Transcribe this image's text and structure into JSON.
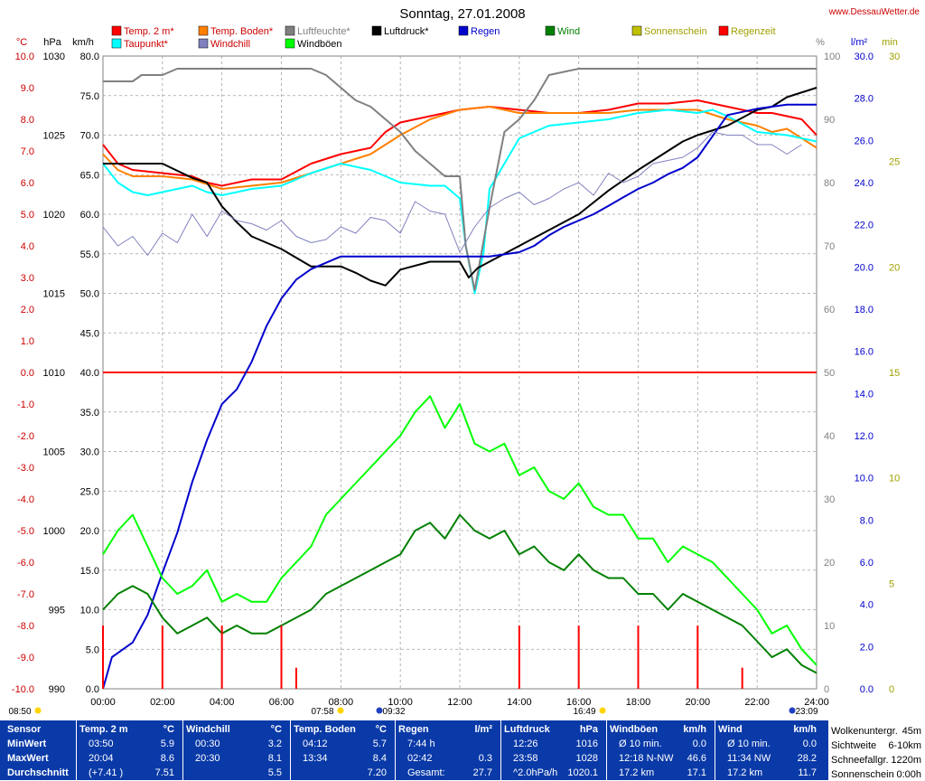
{
  "title": "Sonntag, 27.01.2008",
  "website": "www.DessauWetter.de",
  "legend": [
    {
      "label": "Temp. 2 m*",
      "color": "#ff0000",
      "text_color": "#cc0000"
    },
    {
      "label": "Temp. Boden*",
      "color": "#ff8000",
      "text_color": "#cc0000"
    },
    {
      "label": "Luftfeuchte*",
      "color": "#808080",
      "text_color": "#808080"
    },
    {
      "label": "Luftdruck*",
      "color": "#000000",
      "text_color": "#000000"
    },
    {
      "label": "Regen",
      "color": "#0000cc",
      "text_color": "#0000cc"
    },
    {
      "label": "Wind",
      "color": "#008000",
      "text_color": "#008000"
    },
    {
      "label": "Sonnenschein",
      "color": "#c0c000",
      "text_color": "#a0a000"
    },
    {
      "label": "Regenzeit",
      "color": "#ff0000",
      "text_color": "#a0a000"
    },
    {
      "label": "Taupunkt*",
      "color": "#00ffff",
      "text_color": "#cc0000"
    },
    {
      "label": "Windchill",
      "color": "#8080c0",
      "text_color": "#cc0000"
    },
    {
      "label": "Windböen",
      "color": "#00ff00",
      "text_color": "#000000"
    }
  ],
  "axes": {
    "temp": {
      "unit": "°C",
      "ticks": [
        "10.0",
        "9.0",
        "8.0",
        "7.0",
        "6.0",
        "5.0",
        "4.0",
        "3.0",
        "2.0",
        "1.0",
        "0.0",
        "-1.0",
        "-2.0",
        "-3.0",
        "-4.0",
        "-5.0",
        "-6.0",
        "-7.0",
        "-8.0",
        "-9.0",
        "-10.0"
      ]
    },
    "pressure": {
      "unit": "hPa",
      "ticks": [
        "1030",
        "1025",
        "1020",
        "1015",
        "1010",
        "1005",
        "1000",
        "995",
        "990"
      ]
    },
    "wind": {
      "unit": "km/h",
      "ticks": [
        "80.0",
        "75.0",
        "70.0",
        "65.0",
        "60.0",
        "55.0",
        "50.0",
        "45.0",
        "40.0",
        "35.0",
        "30.0",
        "25.0",
        "20.0",
        "15.0",
        "10.0",
        "5.0",
        "0.0"
      ]
    },
    "humidity": {
      "unit": "%",
      "ticks": [
        "100",
        "90",
        "80",
        "70",
        "60",
        "50",
        "40",
        "30",
        "20",
        "10",
        "0"
      ]
    },
    "rain": {
      "unit": "l/m²",
      "ticks": [
        "30.0",
        "28.0",
        "26.0",
        "24.0",
        "22.0",
        "20.0",
        "18.0",
        "16.0",
        "14.0",
        "12.0",
        "10.0",
        "8.0",
        "6.0",
        "4.0",
        "2.0",
        "0.0"
      ]
    },
    "minutes": {
      "unit": "min",
      "ticks": [
        "30",
        "25",
        "20",
        "15",
        "10",
        "5",
        "0"
      ]
    },
    "time": {
      "ticks": [
        "00:00",
        "02:00",
        "04:00",
        "06:00",
        "08:00",
        "10:00",
        "12:00",
        "14:00",
        "16:00",
        "18:00",
        "20:00",
        "22:00",
        "24:00"
      ]
    }
  },
  "time_markers": [
    {
      "label": "08:50",
      "kind": "sun"
    },
    {
      "label": "07:58",
      "kind": "sun"
    },
    {
      "label": "09:32",
      "kind": "moon"
    },
    {
      "label": "16:49",
      "kind": "sun"
    },
    {
      "label": "23:09",
      "kind": "moon"
    }
  ],
  "chart_data": {
    "type": "line",
    "x_range": [
      "00:00",
      "24:00"
    ],
    "ylim_temp": [
      -10,
      10
    ],
    "ylim_pressure": [
      990,
      1030
    ],
    "ylim_wind": [
      0,
      80
    ],
    "ylim_humidity": [
      0,
      100
    ],
    "ylim_rain": [
      0,
      30
    ],
    "series": [
      {
        "name": "Temp. 2 m*",
        "axis": "temp",
        "color": "#ff0000",
        "x": [
          0,
          0.5,
          1,
          2,
          3,
          3.5,
          4,
          5,
          6,
          7,
          8,
          8.5,
          9,
          9.5,
          10,
          11,
          12,
          13,
          14,
          15,
          16,
          17,
          18,
          19,
          20,
          21,
          21.5,
          22,
          22.5,
          23,
          23.5,
          24
        ],
        "y": [
          7.2,
          6.6,
          6.4,
          6.3,
          6.2,
          6.0,
          5.9,
          6.1,
          6.1,
          6.6,
          6.9,
          7.0,
          7.1,
          7.6,
          7.9,
          8.1,
          8.3,
          8.4,
          8.3,
          8.2,
          8.2,
          8.3,
          8.5,
          8.5,
          8.6,
          8.4,
          8.3,
          8.2,
          8.2,
          8.1,
          8.0,
          7.5
        ]
      },
      {
        "name": "Temp. Boden*",
        "axis": "temp",
        "color": "#ff8000",
        "x": [
          0,
          0.5,
          1,
          2,
          3,
          4,
          5,
          6,
          7,
          8,
          9,
          10,
          11,
          12,
          13,
          14,
          15,
          16,
          17,
          18,
          19,
          20,
          21,
          22,
          22.5,
          23,
          24
        ],
        "y": [
          6.9,
          6.4,
          6.2,
          6.2,
          6.1,
          5.8,
          5.9,
          6.0,
          6.3,
          6.6,
          6.9,
          7.5,
          8.0,
          8.3,
          8.4,
          8.2,
          8.2,
          8.2,
          8.2,
          8.3,
          8.3,
          8.3,
          8.0,
          7.8,
          7.6,
          7.7,
          7.1
        ]
      },
      {
        "name": "Taupunkt*",
        "axis": "temp",
        "color": "#00ffff",
        "x": [
          0,
          0.5,
          1,
          1.5,
          2,
          3,
          3.5,
          4,
          5,
          6,
          7,
          8,
          9,
          10,
          11,
          11.5,
          12,
          12.2,
          12.5,
          12.8,
          13,
          13.5,
          14,
          15,
          16,
          17,
          18,
          19,
          20,
          20.5,
          21,
          22,
          23,
          24
        ],
        "y": [
          6.6,
          6.0,
          5.7,
          5.6,
          5.7,
          5.9,
          5.7,
          5.6,
          5.8,
          5.9,
          6.3,
          6.6,
          6.4,
          6.0,
          5.9,
          5.9,
          5.5,
          4.0,
          2.5,
          3.8,
          5.8,
          6.6,
          7.4,
          7.8,
          7.9,
          8.0,
          8.2,
          8.3,
          8.2,
          8.3,
          8.1,
          7.6,
          7.5,
          7.3
        ]
      },
      {
        "name": "Luftfeuchte*",
        "axis": "humidity",
        "color": "#808080",
        "x": [
          0,
          1,
          1.3,
          2,
          2.5,
          3,
          4,
          5,
          6,
          7,
          7.5,
          8,
          8.5,
          9,
          10,
          10.5,
          11,
          11.5,
          12,
          12.2,
          12.5,
          13,
          13.5,
          14,
          14.5,
          15,
          16,
          17,
          18,
          19,
          20,
          21,
          22,
          23,
          24
        ],
        "y": [
          96,
          96,
          97,
          97,
          98,
          98,
          98,
          98,
          98,
          98,
          97,
          95,
          93,
          92,
          88,
          85,
          83,
          81,
          81,
          70,
          63,
          76,
          88,
          90,
          93,
          97,
          98,
          98,
          98,
          98,
          98,
          98,
          98,
          98,
          98
        ]
      },
      {
        "name": "Luftdruck*",
        "axis": "pressure",
        "color": "#000000",
        "x": [
          0,
          1,
          2,
          3,
          3.5,
          4,
          4.5,
          5,
          6,
          7,
          8,
          8.5,
          9,
          9.5,
          10,
          11,
          12,
          12.3,
          12.6,
          13,
          14,
          15,
          16,
          17,
          18,
          19,
          19.5,
          20,
          21,
          22,
          22.5,
          23,
          24
        ],
        "y": [
          1023.2,
          1023.2,
          1023.2,
          1022.3,
          1022.0,
          1020.5,
          1019.5,
          1018.6,
          1017.8,
          1016.7,
          1016.7,
          1016.3,
          1015.8,
          1015.5,
          1016.5,
          1017.0,
          1017.0,
          1016.0,
          1016.6,
          1017.0,
          1018.0,
          1019.0,
          1020.0,
          1021.5,
          1022.8,
          1024.0,
          1024.6,
          1025.0,
          1025.6,
          1026.6,
          1026.8,
          1027.4,
          1028.0
        ]
      },
      {
        "name": "Regen",
        "axis": "rain",
        "color": "#0000cc",
        "x": [
          0,
          0.3,
          1,
          1.5,
          2,
          2.5,
          3,
          3.5,
          4,
          4.5,
          5,
          5.5,
          6,
          6.5,
          7,
          7.5,
          8,
          8.5,
          9,
          10,
          12,
          13,
          14,
          14.5,
          15,
          15.5,
          16,
          16.5,
          17,
          17.5,
          18,
          18.5,
          19,
          19.5,
          20,
          20.5,
          21,
          22,
          23,
          24
        ],
        "y": [
          0,
          1.5,
          2.2,
          3.5,
          5.5,
          7.4,
          9.8,
          11.8,
          13.5,
          14.2,
          15.5,
          17.2,
          18.5,
          19.4,
          19.9,
          20.2,
          20.5,
          20.5,
          20.5,
          20.5,
          20.5,
          20.5,
          20.7,
          21.0,
          21.5,
          21.9,
          22.2,
          22.5,
          22.9,
          23.3,
          23.7,
          24.0,
          24.4,
          24.7,
          25.2,
          26.2,
          27.2,
          27.5,
          27.7,
          27.7
        ]
      },
      {
        "name": "Windchill",
        "axis": "temp",
        "color": "#8080c0",
        "x": [
          0,
          0.5,
          1,
          1.5,
          2,
          2.5,
          3,
          3.5,
          4,
          4.5,
          5,
          5.5,
          6,
          6.5,
          7,
          7.5,
          8,
          8.5,
          9,
          9.5,
          10,
          10.5,
          11,
          11.5,
          12,
          12.5,
          13,
          13.5,
          14,
          14.5,
          15,
          15.5,
          16,
          16.5,
          17,
          17.5,
          18,
          18.5,
          19,
          19.5,
          20,
          20.5,
          21,
          21.5,
          22,
          22.5,
          23,
          23.5
        ],
        "y": [
          4.6,
          4.0,
          4.3,
          3.7,
          4.4,
          4.1,
          5.0,
          4.3,
          5.1,
          4.8,
          4.7,
          4.5,
          4.8,
          4.3,
          4.1,
          4.2,
          4.6,
          4.4,
          4.9,
          4.8,
          4.4,
          5.4,
          5.1,
          5.0,
          3.8,
          4.6,
          5.2,
          5.5,
          5.7,
          5.3,
          5.5,
          5.8,
          6.0,
          5.6,
          6.3,
          6.0,
          6.2,
          6.6,
          6.7,
          6.8,
          7.1,
          7.6,
          7.5,
          7.5,
          7.2,
          7.2,
          6.9,
          7.2
        ]
      },
      {
        "name": "Wind",
        "axis": "wind",
        "color": "#008000",
        "x": [
          0,
          0.5,
          1,
          1.5,
          2,
          2.5,
          3,
          3.5,
          4,
          4.5,
          5,
          5.5,
          6,
          6.5,
          7,
          7.5,
          8,
          8.5,
          9,
          9.5,
          10,
          10.5,
          11,
          11.5,
          12,
          12.5,
          13,
          13.5,
          14,
          14.5,
          15,
          15.5,
          16,
          16.5,
          17,
          17.5,
          18,
          18.5,
          19,
          19.5,
          20,
          20.5,
          21,
          21.5,
          22,
          22.5,
          23,
          23.5,
          24
        ],
        "y": [
          10,
          12,
          13,
          12,
          9,
          7,
          8,
          9,
          7,
          8,
          7,
          7,
          8,
          9,
          10,
          12,
          13,
          14,
          15,
          16,
          17,
          20,
          21,
          19,
          22,
          20,
          19,
          20,
          17,
          18,
          16,
          15,
          17,
          15,
          14,
          14,
          12,
          12,
          10,
          12,
          11,
          10,
          9,
          8,
          6,
          4,
          5,
          3,
          2
        ]
      },
      {
        "name": "Windböen",
        "axis": "wind",
        "color": "#00ff00",
        "x": [
          0,
          0.5,
          1,
          1.5,
          2,
          2.5,
          3,
          3.5,
          4,
          4.5,
          5,
          5.5,
          6,
          6.5,
          7,
          7.5,
          8,
          8.5,
          9,
          9.5,
          10,
          10.5,
          11,
          11.5,
          12,
          12.5,
          13,
          13.5,
          14,
          14.5,
          15,
          15.5,
          16,
          16.5,
          17,
          17.5,
          18,
          18.5,
          19,
          19.5,
          20,
          20.5,
          21,
          21.5,
          22,
          22.5,
          23,
          23.5,
          24
        ],
        "y": [
          17,
          20,
          22,
          18,
          14,
          12,
          13,
          15,
          11,
          12,
          11,
          11,
          14,
          16,
          18,
          22,
          24,
          26,
          28,
          30,
          32,
          35,
          37,
          33,
          36,
          31,
          30,
          31,
          27,
          28,
          25,
          24,
          26,
          23,
          22,
          22,
          19,
          19,
          16,
          18,
          17,
          16,
          14,
          12,
          10,
          7,
          8,
          5,
          3
        ]
      },
      {
        "name": "Regenzeit",
        "axis": "minutes",
        "color": "#ff0000",
        "x": [
          0,
          2,
          4,
          6,
          6.5,
          7,
          8,
          9,
          10,
          12,
          14,
          16,
          18,
          20,
          21.5,
          22,
          24
        ],
        "y": [
          3,
          3,
          3,
          3,
          1,
          0,
          0,
          0,
          0,
          0,
          3,
          3,
          3,
          3,
          1,
          0,
          0
        ]
      }
    ]
  },
  "table": {
    "row_labels": [
      "Sensor",
      "MinWert",
      "MaxWert",
      "Durchschnitt"
    ],
    "columns": [
      {
        "header": "Temp. 2 m",
        "unit": "°C",
        "rows": [
          [
            "03:50",
            "5.9"
          ],
          [
            "20:04",
            "8.6"
          ],
          [
            "(+7.41 )",
            "7.51"
          ]
        ]
      },
      {
        "header": "Windchill",
        "unit": "°C",
        "rows": [
          [
            "00:30",
            "3.2"
          ],
          [
            "20:30",
            "8.1"
          ],
          [
            "",
            "5.5"
          ]
        ]
      },
      {
        "header": "Temp. Boden",
        "unit": "°C",
        "rows": [
          [
            "04:12",
            "5.7"
          ],
          [
            "13:34",
            "8.4"
          ],
          [
            "",
            "7.20"
          ]
        ]
      },
      {
        "header": "Regen",
        "unit": "l/m²",
        "rows": [
          [
            "7:44 h",
            ""
          ],
          [
            "02:42",
            "0.3"
          ],
          [
            "Gesamt:",
            "27.7"
          ]
        ]
      },
      {
        "header": "Luftdruck",
        "unit": "hPa",
        "rows": [
          [
            "12:26",
            "1016"
          ],
          [
            "23:58",
            "1028"
          ],
          [
            "^2.0hPa/h",
            "1020.1"
          ]
        ]
      },
      {
        "header": "Windböen",
        "unit": "km/h",
        "rows": [
          [
            "Ø 10 min.",
            "0.0"
          ],
          [
            "12:18  N-NW",
            "46.6"
          ],
          [
            "17.2 km",
            "17.1"
          ]
        ]
      },
      {
        "header": "Wind",
        "unit": "km/h",
        "rows": [
          [
            "Ø 10 min.",
            "0.0"
          ],
          [
            "11:34  NW",
            "28.2"
          ],
          [
            "17.2 km",
            "11.7"
          ]
        ]
      }
    ],
    "info": [
      {
        "label": "Wolkenuntergr.",
        "value": "45m"
      },
      {
        "label": "Sichtweite",
        "value": "6-10km"
      },
      {
        "label": "Schneefallgr.",
        "value": "1220m"
      },
      {
        "label": "Sonnenschein",
        "value": "0:00h"
      }
    ]
  }
}
